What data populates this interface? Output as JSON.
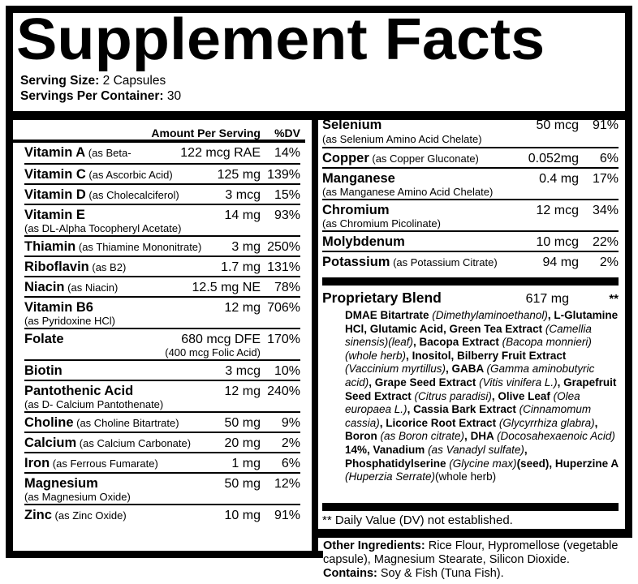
{
  "title": "Supplement Facts",
  "serving": {
    "size_label": "Serving Size:",
    "size_value": " 2 Capsules",
    "per_container_label": "Servings Per Container:",
    "per_container_value": " 30"
  },
  "table": {
    "header": {
      "amount": "Amount Per Serving",
      "dv": "%DV"
    },
    "left_rows": [
      {
        "name": "Vitamin A",
        "detail": "(as Beta-Carotene)",
        "amount": "122 mcg RAE",
        "dv": "14%"
      },
      {
        "name": "Vitamin C",
        "detail": "(as Ascorbic Acid)",
        "amount": "125 mg",
        "dv": "139%"
      },
      {
        "name": "Vitamin D",
        "detail": "(as Cholecalciferol)",
        "amount": "3 mcg",
        "dv": "15%"
      },
      {
        "name": "Vitamin E",
        "detail": "(as DL-Alpha Tocopheryl Acetate)",
        "amount": "14 mg",
        "dv": "93%",
        "wrap": true
      },
      {
        "name": "Thiamin",
        "detail": "(as Thiamine Mononitrate)",
        "amount": "3 mg",
        "dv": "250%"
      },
      {
        "name": "Riboflavin",
        "detail": "(as B2)",
        "amount": "1.7 mg",
        "dv": "131%"
      },
      {
        "name": "Niacin",
        "detail": "(as Niacin)",
        "amount": "12.5 mg NE",
        "dv": "78%"
      },
      {
        "name": "Vitamin B6",
        "detail": "(as Pyridoxine HCl)",
        "amount": "12 mg",
        "dv": "706%",
        "wrap": true
      },
      {
        "name": "Folate",
        "detail": "",
        "amount": "680 mcg DFE",
        "note": "(400 mcg Folic Acid)",
        "dv": "170%",
        "wrap": true
      },
      {
        "name": "Biotin",
        "detail": "",
        "amount": "3 mcg",
        "dv": "10%"
      },
      {
        "name": "Pantothenic Acid",
        "detail": "(as D- Calcium Pantothenate)",
        "amount": "12 mg",
        "dv": "240%",
        "wrap": true
      },
      {
        "name": "Choline",
        "detail": "(as Choline Bitartrate)",
        "amount": "50 mg",
        "dv": "9%"
      },
      {
        "name": "Calcium",
        "detail": "(as Calcium Carbonate)",
        "amount": "20 mg",
        "dv": "2%"
      },
      {
        "name": "Iron",
        "detail": "(as Ferrous Fumarate)",
        "amount": "1 mg",
        "dv": "6%"
      },
      {
        "name": "Magnesium",
        "detail": "(as Magnesium Oxide)",
        "amount": "50 mg",
        "dv": "12%",
        "wrap": true
      },
      {
        "name": "Zinc",
        "detail": "(as Zinc Oxide)",
        "amount": "10 mg",
        "dv": "91%"
      }
    ],
    "right_rows": [
      {
        "name": "Selenium",
        "detail": "(as Selenium Amino Acid Chelate)",
        "amount": "50 mcg",
        "dv": "91%",
        "wrap": true
      },
      {
        "name": "Copper",
        "detail": "(as Copper Gluconate)",
        "amount": "0.052mg",
        "dv": "6%"
      },
      {
        "name": "Manganese",
        "detail": "(as Manganese Amino Acid Chelate)",
        "amount": "0.4 mg",
        "dv": "17%",
        "wrap": true
      },
      {
        "name": "Chromium",
        "detail": "(as Chromium Picolinate)",
        "amount": "12 mcg",
        "dv": "34%",
        "wrap": true
      },
      {
        "name": "Molybdenum",
        "detail": "",
        "amount": "10 mcg",
        "dv": "22%"
      },
      {
        "name": "Potassium",
        "detail": "(as Potassium Citrate)",
        "amount": "94 mg",
        "dv": "2%"
      }
    ],
    "blend": {
      "name": "Proprietary Blend",
      "amount": "617 mg",
      "dv": "**",
      "ingredients": [
        {
          "t": "DMAE Bitartrate ",
          "b": true
        },
        {
          "t": "(Dimethylaminoethanol)",
          "i": true
        },
        {
          "t": ", ",
          "b": true
        },
        {
          "t": "L-Glutamine HCl, Glutamic Acid, Green Tea Extract ",
          "b": true
        },
        {
          "t": "(Camellia sinensis)(leaf)",
          "i": true
        },
        {
          "t": ", ",
          "b": true
        },
        {
          "t": "Bacopa Extract ",
          "b": true
        },
        {
          "t": "(Bacopa monnieri)(whole herb)",
          "i": true
        },
        {
          "t": ", ",
          "b": true
        },
        {
          "t": "Inositol, Bilberry Fruit Extract ",
          "b": true
        },
        {
          "t": "(Vaccinium myrtillus)",
          "i": true
        },
        {
          "t": ", ",
          "b": true
        },
        {
          "t": "GABA ",
          "b": true
        },
        {
          "t": "(Gamma aminobutyric acid)",
          "i": true
        },
        {
          "t": ", ",
          "b": true
        },
        {
          "t": "Grape Seed Extract ",
          "b": true
        },
        {
          "t": "(Vitis vinifera L.)",
          "i": true
        },
        {
          "t": ", ",
          "b": true
        },
        {
          "t": "Grapefruit Seed Extract ",
          "b": true
        },
        {
          "t": "(Citrus paradisi)",
          "i": true
        },
        {
          "t": ", ",
          "b": true
        },
        {
          "t": "Olive Leaf ",
          "b": true
        },
        {
          "t": "(Olea europaea L.)",
          "i": true
        },
        {
          "t": ", ",
          "b": true
        },
        {
          "t": "Cassia Bark Extract ",
          "b": true
        },
        {
          "t": "(Cinnamomum cassia)",
          "i": true
        },
        {
          "t": ", ",
          "b": true
        },
        {
          "t": "Licorice Root Extract ",
          "b": true
        },
        {
          "t": "(Glycyrrhiza glabra)",
          "i": true
        },
        {
          "t": ", ",
          "b": true
        },
        {
          "t": "Boron ",
          "b": true
        },
        {
          "t": "(as Boron citrate)",
          "i": true
        },
        {
          "t": ", ",
          "b": true
        },
        {
          "t": "DHA ",
          "b": true
        },
        {
          "t": "(Docosahexaenoic Acid)",
          "i": true
        },
        {
          "t": " 14%, ",
          "b": true
        },
        {
          "t": "Vanadium ",
          "b": true
        },
        {
          "t": "(as Vanadyl sulfate)",
          "i": true
        },
        {
          "t": ", ",
          "b": true
        },
        {
          "t": "Phosphatidylserine ",
          "b": true
        },
        {
          "t": "(Glycine max)",
          "i": true
        },
        {
          "t": "(seed), ",
          "b": true
        },
        {
          "t": "Huperzine A ",
          "b": true
        },
        {
          "t": "(Huperzia Serrate)",
          "i": true
        },
        {
          "t": "(whole herb)",
          "b": false
        }
      ]
    },
    "footnote": "** Daily Value (DV) not established."
  },
  "bottom": {
    "other_ingredients": [
      {
        "t": "Other Ingredients: ",
        "b": true
      },
      {
        "t": "Rice Flour, Hypromellose (vegetable capsule), Magnesium Stearate, Silicon Dioxide.",
        "b": false
      }
    ],
    "contains": [
      {
        "t": "Contains: ",
        "b": true
      },
      {
        "t": "Soy & Fish (Tuna Fish).",
        "b": false
      }
    ]
  },
  "colors": {
    "ink": "#000000",
    "paper": "#ffffff"
  }
}
